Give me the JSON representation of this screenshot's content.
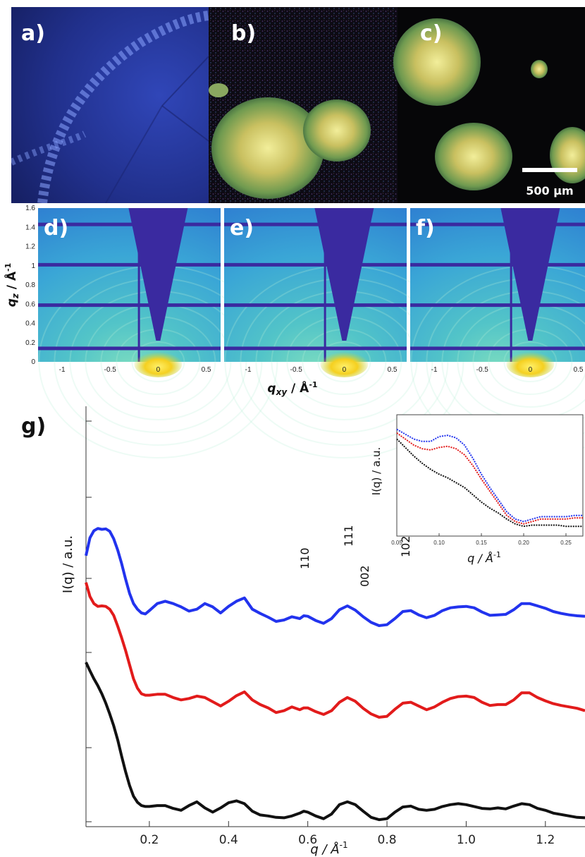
{
  "panel_labels": {
    "a": "a)",
    "b": "b)",
    "c": "c)",
    "d": "d)",
    "e": "e)",
    "f": "f)",
    "g": "g)"
  },
  "scale_bar": "500 µm",
  "colors": {
    "blue": "#2233ee",
    "red": "#e21b1b",
    "black": "#111111",
    "gisaxs_bg": "#46b4d8",
    "gisaxs_beamstop": "#3a2aa0",
    "gisaxs_spot": "#f5d020"
  },
  "chart_data": [
    {
      "panel": "d-f",
      "type": "heatmap",
      "panels": [
        "d)",
        "e)",
        "f)"
      ],
      "xlabel_main": "q",
      "xlabel_sub": "xy",
      "xlabel_unit": " / Å",
      "xlabel_exp": "-1",
      "ylabel_main": "q",
      "ylabel_sub": "z",
      "ylabel_unit": " / Å",
      "ylabel_exp": "-1",
      "x_ticks": [
        {
          "v": -1,
          "t": "-1"
        },
        {
          "v": -0.5,
          "t": "-0.5"
        },
        {
          "v": 0,
          "t": "0"
        },
        {
          "v": 0.5,
          "t": "0.5"
        }
      ],
      "y_ticks": [
        {
          "v": 1.6,
          "t": "1.6"
        },
        {
          "v": 1.4,
          "t": "1.4"
        },
        {
          "v": 1.2,
          "t": "1.2"
        },
        {
          "v": 1.0,
          "t": "1"
        },
        {
          "v": 0.8,
          "t": "0.8"
        },
        {
          "v": 0.6,
          "t": "0.6"
        },
        {
          "v": 0.4,
          "t": "0.4"
        },
        {
          "v": 0.2,
          "t": "0.2"
        },
        {
          "v": 0,
          "t": "0"
        }
      ],
      "xlim": [
        -1.25,
        0.65
      ],
      "ylim": [
        0,
        1.6
      ]
    },
    {
      "panel": "g",
      "type": "line",
      "title": "g)",
      "xlabel": "q / Å",
      "xlabel_exp": "-1",
      "ylabel": "I(q) / a.u.",
      "yscale": "log",
      "xlim": [
        0.04,
        1.3
      ],
      "x_ticks": [
        {
          "v": 0.2,
          "t": "0.2"
        },
        {
          "v": 0.4,
          "t": "0.4"
        },
        {
          "v": 0.6,
          "t": "0.6"
        },
        {
          "v": 0.8,
          "t": "0.8"
        },
        {
          "v": 1.0,
          "t": "1.0"
        },
        {
          "v": 1.2,
          "t": "1.2"
        }
      ],
      "x": [
        0.04,
        0.05,
        0.06,
        0.07,
        0.08,
        0.09,
        0.1,
        0.11,
        0.12,
        0.13,
        0.14,
        0.15,
        0.16,
        0.17,
        0.18,
        0.19,
        0.2,
        0.22,
        0.24,
        0.26,
        0.28,
        0.3,
        0.32,
        0.34,
        0.36,
        0.38,
        0.4,
        0.42,
        0.44,
        0.46,
        0.48,
        0.5,
        0.52,
        0.54,
        0.56,
        0.58,
        0.59,
        0.6,
        0.62,
        0.64,
        0.66,
        0.68,
        0.7,
        0.72,
        0.74,
        0.76,
        0.78,
        0.8,
        0.82,
        0.84,
        0.86,
        0.88,
        0.9,
        0.92,
        0.94,
        0.96,
        0.98,
        1.0,
        1.02,
        1.04,
        1.06,
        1.08,
        1.1,
        1.12,
        1.14,
        1.16,
        1.18,
        1.2,
        1.22,
        1.24,
        1.26,
        1.28,
        1.3
      ],
      "series": [
        {
          "color": "#2233ee",
          "values": [
            3.18,
            2.8,
            2.65,
            2.6,
            2.62,
            2.61,
            2.66,
            2.82,
            3.06,
            3.35,
            3.68,
            3.98,
            4.2,
            4.32,
            4.4,
            4.42,
            4.35,
            4.2,
            4.15,
            4.2,
            4.27,
            4.36,
            4.32,
            4.2,
            4.27,
            4.4,
            4.26,
            4.15,
            4.08,
            4.32,
            4.41,
            4.49,
            4.58,
            4.55,
            4.48,
            4.52,
            4.46,
            4.47,
            4.56,
            4.62,
            4.52,
            4.33,
            4.25,
            4.34,
            4.48,
            4.6,
            4.67,
            4.65,
            4.52,
            4.37,
            4.35,
            4.44,
            4.5,
            4.45,
            4.35,
            4.29,
            4.27,
            4.26,
            4.29,
            4.38,
            4.45,
            4.44,
            4.43,
            4.33,
            4.2,
            4.2,
            4.25,
            4.3,
            4.37,
            4.41,
            4.44,
            4.46,
            4.47
          ]
        },
        {
          "color": "#e21b1b",
          "values": [
            3.75,
            4.05,
            4.2,
            4.26,
            4.25,
            4.26,
            4.32,
            4.45,
            4.68,
            4.93,
            5.2,
            5.5,
            5.8,
            6.0,
            6.12,
            6.15,
            6.15,
            6.13,
            6.13,
            6.2,
            6.25,
            6.22,
            6.17,
            6.2,
            6.29,
            6.38,
            6.28,
            6.16,
            6.08,
            6.25,
            6.35,
            6.42,
            6.52,
            6.48,
            6.4,
            6.46,
            6.42,
            6.42,
            6.5,
            6.56,
            6.48,
            6.3,
            6.2,
            6.28,
            6.43,
            6.55,
            6.62,
            6.6,
            6.45,
            6.32,
            6.3,
            6.38,
            6.46,
            6.4,
            6.3,
            6.22,
            6.18,
            6.17,
            6.2,
            6.3,
            6.37,
            6.35,
            6.35,
            6.25,
            6.1,
            6.1,
            6.2,
            6.27,
            6.33,
            6.37,
            6.4,
            6.43,
            6.48
          ]
        },
        {
          "color": "#111111",
          "values": [
            5.45,
            5.63,
            5.8,
            5.95,
            6.12,
            6.32,
            6.55,
            6.8,
            7.1,
            7.45,
            7.78,
            8.07,
            8.3,
            8.43,
            8.5,
            8.52,
            8.52,
            8.5,
            8.5,
            8.56,
            8.6,
            8.5,
            8.42,
            8.55,
            8.64,
            8.55,
            8.44,
            8.4,
            8.46,
            8.62,
            8.7,
            8.72,
            8.75,
            8.76,
            8.72,
            8.66,
            8.62,
            8.64,
            8.72,
            8.78,
            8.68,
            8.48,
            8.42,
            8.48,
            8.62,
            8.75,
            8.8,
            8.78,
            8.64,
            8.53,
            8.51,
            8.58,
            8.6,
            8.58,
            8.52,
            8.48,
            8.46,
            8.48,
            8.52,
            8.56,
            8.57,
            8.55,
            8.57,
            8.51,
            8.46,
            8.48,
            8.56,
            8.6,
            8.66,
            8.69,
            8.72,
            8.75,
            8.76
          ]
        }
      ],
      "annotations": [
        "110",
        "111",
        "002",
        "102"
      ]
    },
    {
      "panel": "g-inset",
      "type": "line",
      "xlabel": "q / Å",
      "xlabel_exp": "-1",
      "ylabel": "I(q) / a.u.",
      "xlim": [
        0.05,
        0.27
      ],
      "x_ticks": [
        {
          "v": 0.05,
          "t": "0.05"
        },
        {
          "v": 0.1,
          "t": "0.10"
        },
        {
          "v": 0.15,
          "t": "0.15"
        },
        {
          "v": 0.2,
          "t": "0.20"
        },
        {
          "v": 0.25,
          "t": "0.25"
        }
      ],
      "x": [
        0.05,
        0.06,
        0.07,
        0.08,
        0.09,
        0.1,
        0.11,
        0.12,
        0.13,
        0.14,
        0.15,
        0.16,
        0.17,
        0.18,
        0.19,
        0.2,
        0.21,
        0.22,
        0.23,
        0.24,
        0.25,
        0.26,
        0.27
      ],
      "series": [
        {
          "color": "#2233ee",
          "values": [
            0.12,
            0.16,
            0.2,
            0.22,
            0.22,
            0.18,
            0.17,
            0.19,
            0.25,
            0.36,
            0.49,
            0.6,
            0.7,
            0.8,
            0.86,
            0.88,
            0.86,
            0.84,
            0.84,
            0.84,
            0.84,
            0.83,
            0.83
          ]
        },
        {
          "color": "#e21b1b",
          "values": [
            0.15,
            0.2,
            0.25,
            0.28,
            0.29,
            0.27,
            0.26,
            0.28,
            0.33,
            0.42,
            0.53,
            0.63,
            0.73,
            0.83,
            0.88,
            0.9,
            0.88,
            0.86,
            0.86,
            0.86,
            0.86,
            0.85,
            0.85
          ]
        },
        {
          "color": "#111111",
          "values": [
            0.2,
            0.27,
            0.34,
            0.4,
            0.45,
            0.49,
            0.52,
            0.56,
            0.6,
            0.66,
            0.72,
            0.77,
            0.81,
            0.86,
            0.9,
            0.92,
            0.91,
            0.91,
            0.91,
            0.91,
            0.92,
            0.92,
            0.92
          ]
        }
      ]
    }
  ]
}
